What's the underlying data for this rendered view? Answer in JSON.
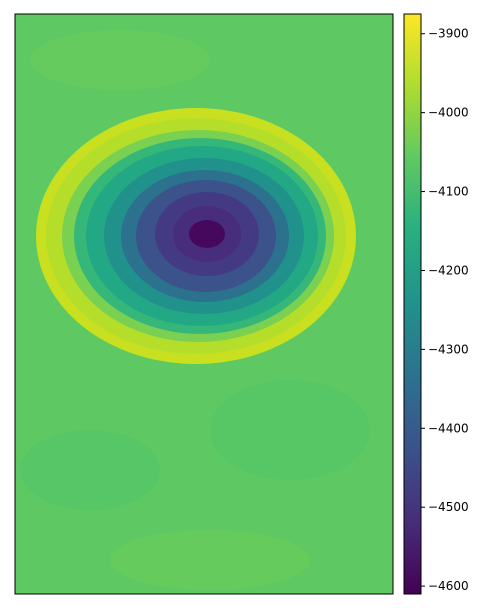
{
  "chart_data": {
    "type": "heatmap",
    "title": "",
    "xlabel": "",
    "ylabel": "",
    "colormap": "viridis",
    "axes": {
      "x_ticks_visible": false,
      "y_ticks_visible": false,
      "grid": false
    },
    "colorbar": {
      "location": "right",
      "range": [
        -4610,
        -3875
      ],
      "ticks": [
        -3900,
        -4000,
        -4100,
        -4200,
        -4300,
        -4400,
        -4500,
        -4600
      ],
      "tick_labels": [
        "−3900",
        "−4000",
        "−4100",
        "−4200",
        "−4300",
        "−4400",
        "−4500",
        "−4600"
      ],
      "n_levels": 8
    },
    "field": {
      "background_level": -4045,
      "depression_center": [
        0.5,
        0.39
      ],
      "depression_min": -4600,
      "rim_max": -3920,
      "description_levels": [
        "rim",
        "bowl",
        "plain"
      ]
    },
    "colors": {
      "viridis_stops": [
        "#440154",
        "#472d7b",
        "#3b528b",
        "#2c728e",
        "#21918c",
        "#28ae80",
        "#5ec962",
        "#addc30",
        "#fde725"
      ]
    }
  }
}
